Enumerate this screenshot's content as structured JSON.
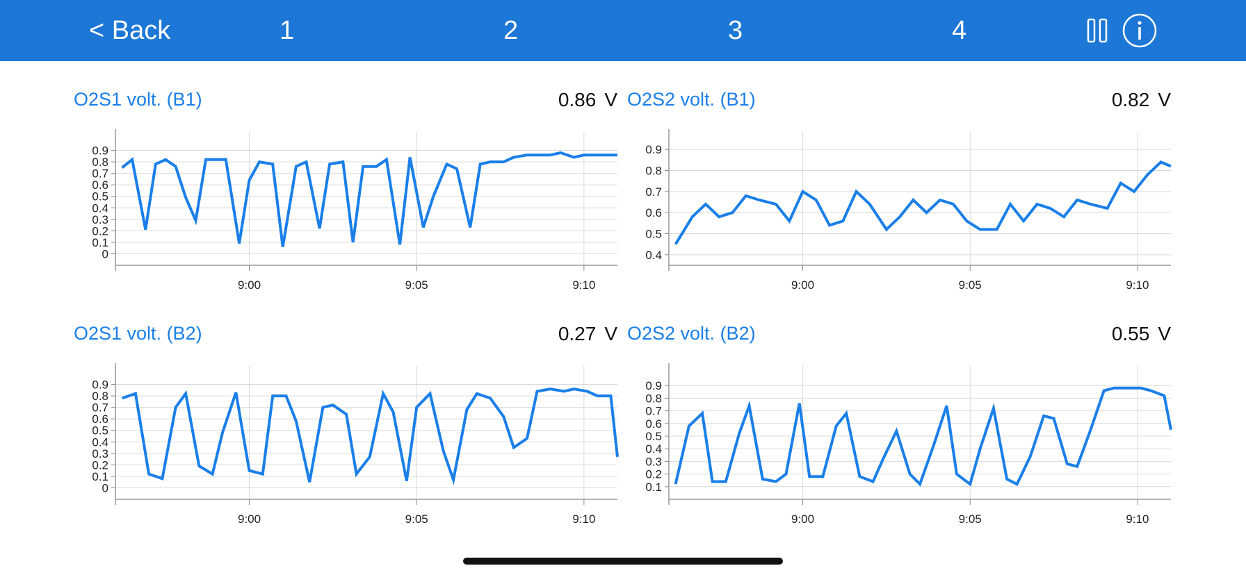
{
  "nav": {
    "back_label": "< Back",
    "tabs": [
      "1",
      "2",
      "3",
      "4"
    ],
    "pause_icon": "pause-icon",
    "info_icon": "info-icon"
  },
  "colors": {
    "header_bg": "#1c77d6",
    "title": "#1a7fe8",
    "line": "#1a7fe8",
    "grid": "#d9d9d9"
  },
  "panels": [
    {
      "title": "O2S1 volt. (B1)",
      "value": "0.86",
      "unit": "V"
    },
    {
      "title": "O2S2 volt. (B1)",
      "value": "0.82",
      "unit": "V"
    },
    {
      "title": "O2S1 volt. (B2)",
      "value": "0.27",
      "unit": "V"
    },
    {
      "title": "O2S2 volt. (B2)",
      "value": "0.55",
      "unit": "V"
    }
  ],
  "chart_data": [
    {
      "type": "line",
      "title": "O2S1 volt. (B1)",
      "x_unit": "minutes",
      "xlim": [
        8.96,
        9.11
      ],
      "xticks": [
        "9:00",
        "9:05",
        "9:10"
      ],
      "xtick_values": [
        9.0,
        9.05,
        9.1
      ],
      "ylim": [
        -0.1,
        1.0
      ],
      "yticks": [
        "0.9",
        "0.8",
        "0.7",
        "0.6",
        "0.5",
        "0.4",
        "0.3",
        "0.2",
        "0.1",
        "0"
      ],
      "ytick_values": [
        0.9,
        0.8,
        0.7,
        0.6,
        0.5,
        0.4,
        0.3,
        0.2,
        0.1,
        0
      ],
      "grid": true,
      "series": [
        {
          "x": [
            8.962,
            8.965,
            8.969,
            8.972,
            8.975,
            8.978,
            8.981,
            8.984,
            8.987,
            8.993,
            8.997,
            9.0,
            9.003,
            9.007,
            9.01,
            9.014,
            9.017,
            9.021,
            9.024,
            9.028,
            9.031,
            9.034,
            9.038,
            9.041,
            9.045,
            9.048,
            9.052,
            9.055,
            9.059,
            9.062,
            9.066,
            9.069,
            9.072,
            9.076,
            9.079,
            9.083,
            9.086,
            9.09,
            9.093,
            9.097,
            9.1,
            9.103,
            9.107,
            9.11
          ],
          "y": [
            0.75,
            0.82,
            0.21,
            0.78,
            0.82,
            0.76,
            0.49,
            0.29,
            0.82,
            0.82,
            0.09,
            0.64,
            0.8,
            0.78,
            0.06,
            0.76,
            0.8,
            0.22,
            0.78,
            0.8,
            0.1,
            0.76,
            0.76,
            0.82,
            0.08,
            0.84,
            0.23,
            0.5,
            0.78,
            0.74,
            0.23,
            0.78,
            0.8,
            0.8,
            0.84,
            0.86,
            0.86,
            0.86,
            0.88,
            0.84,
            0.86,
            0.86,
            0.86,
            0.86
          ]
        }
      ]
    },
    {
      "type": "line",
      "title": "O2S2 volt. (B1)",
      "x_unit": "minutes",
      "xlim": [
        8.96,
        9.11
      ],
      "xticks": [
        "9:00",
        "9:05",
        "9:10"
      ],
      "xtick_values": [
        9.0,
        9.05,
        9.1
      ],
      "ylim": [
        0.35,
        0.95
      ],
      "yticks": [
        "0.9",
        "0.8",
        "0.7",
        "0.6",
        "0.5",
        "0.4"
      ],
      "ytick_values": [
        0.9,
        0.8,
        0.7,
        0.6,
        0.5,
        0.4
      ],
      "grid": true,
      "series": [
        {
          "x": [
            8.962,
            8.967,
            8.971,
            8.975,
            8.979,
            8.983,
            8.987,
            8.992,
            8.996,
            9.0,
            9.004,
            9.008,
            9.012,
            9.016,
            9.02,
            9.025,
            9.029,
            9.033,
            9.037,
            9.041,
            9.045,
            9.049,
            9.053,
            9.058,
            9.062,
            9.066,
            9.07,
            9.074,
            9.078,
            9.082,
            9.086,
            9.091,
            9.095,
            9.099,
            9.103,
            9.107,
            9.11
          ],
          "y": [
            0.45,
            0.58,
            0.64,
            0.58,
            0.6,
            0.68,
            0.66,
            0.64,
            0.56,
            0.7,
            0.66,
            0.54,
            0.56,
            0.7,
            0.64,
            0.52,
            0.58,
            0.66,
            0.6,
            0.66,
            0.64,
            0.56,
            0.52,
            0.52,
            0.64,
            0.56,
            0.64,
            0.62,
            0.58,
            0.66,
            0.64,
            0.62,
            0.74,
            0.7,
            0.78,
            0.84,
            0.82
          ]
        }
      ]
    },
    {
      "type": "line",
      "title": "O2S1 volt. (B2)",
      "x_unit": "minutes",
      "xlim": [
        8.96,
        9.11
      ],
      "xticks": [
        "9:00",
        "9:05",
        "9:10"
      ],
      "xtick_values": [
        9.0,
        9.05,
        9.1
      ],
      "ylim": [
        -0.1,
        1.0
      ],
      "yticks": [
        "0.9",
        "0.8",
        "0.7",
        "0.6",
        "0.5",
        "0.4",
        "0.3",
        "0.2",
        "0.1",
        "0"
      ],
      "ytick_values": [
        0.9,
        0.8,
        0.7,
        0.6,
        0.5,
        0.4,
        0.3,
        0.2,
        0.1,
        0
      ],
      "grid": true,
      "series": [
        {
          "x": [
            8.962,
            8.966,
            8.97,
            8.974,
            8.978,
            8.981,
            8.985,
            8.989,
            8.992,
            8.996,
            9.0,
            9.004,
            9.007,
            9.011,
            9.014,
            9.018,
            9.022,
            9.025,
            9.029,
            9.032,
            9.036,
            9.04,
            9.043,
            9.047,
            9.05,
            9.054,
            9.058,
            9.061,
            9.065,
            9.068,
            9.072,
            9.076,
            9.079,
            9.083,
            9.086,
            9.09,
            9.094,
            9.097,
            9.101,
            9.104,
            9.108,
            9.11
          ],
          "y": [
            0.78,
            0.82,
            0.12,
            0.08,
            0.7,
            0.82,
            0.19,
            0.12,
            0.48,
            0.83,
            0.15,
            0.12,
            0.8,
            0.8,
            0.58,
            0.05,
            0.7,
            0.72,
            0.64,
            0.12,
            0.27,
            0.82,
            0.66,
            0.06,
            0.7,
            0.82,
            0.32,
            0.07,
            0.68,
            0.82,
            0.78,
            0.62,
            0.35,
            0.43,
            0.84,
            0.86,
            0.84,
            0.86,
            0.84,
            0.8,
            0.8,
            0.27
          ]
        }
      ]
    },
    {
      "type": "line",
      "title": "O2S2 volt. (B2)",
      "x_unit": "minutes",
      "xlim": [
        8.96,
        9.11
      ],
      "xticks": [
        "9:00",
        "9:05",
        "9:10"
      ],
      "xtick_values": [
        9.0,
        9.05,
        9.1
      ],
      "ylim": [
        0.0,
        1.0
      ],
      "yticks": [
        "0.9",
        "0.8",
        "0.7",
        "0.6",
        "0.5",
        "0.4",
        "0.3",
        "0.2",
        "0.1"
      ],
      "ytick_values": [
        0.9,
        0.8,
        0.7,
        0.6,
        0.5,
        0.4,
        0.3,
        0.2,
        0.1
      ],
      "grid": true,
      "series": [
        {
          "x": [
            8.962,
            8.966,
            8.97,
            8.973,
            8.977,
            8.981,
            8.984,
            8.988,
            8.992,
            8.995,
            8.999,
            9.002,
            9.006,
            9.01,
            9.013,
            9.017,
            9.021,
            9.024,
            9.028,
            9.032,
            9.035,
            9.039,
            9.043,
            9.046,
            9.05,
            9.053,
            9.057,
            9.061,
            9.064,
            9.068,
            9.072,
            9.075,
            9.079,
            9.082,
            9.086,
            9.09,
            9.093,
            9.097,
            9.101,
            9.104,
            9.108,
            9.11
          ],
          "y": [
            0.12,
            0.58,
            0.68,
            0.14,
            0.14,
            0.52,
            0.74,
            0.16,
            0.14,
            0.2,
            0.76,
            0.18,
            0.18,
            0.58,
            0.68,
            0.18,
            0.14,
            0.32,
            0.54,
            0.2,
            0.12,
            0.42,
            0.74,
            0.2,
            0.12,
            0.4,
            0.72,
            0.16,
            0.12,
            0.34,
            0.66,
            0.64,
            0.28,
            0.26,
            0.55,
            0.86,
            0.88,
            0.88,
            0.88,
            0.86,
            0.82,
            0.55
          ]
        }
      ]
    }
  ]
}
